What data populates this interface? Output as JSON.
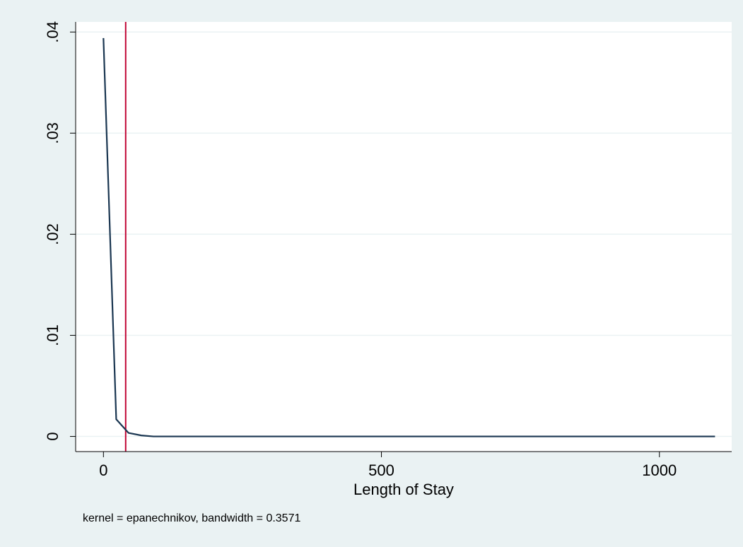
{
  "chart_data": {
    "type": "line",
    "title": "",
    "xlabel": "Length of Stay",
    "ylabel": "",
    "note": "kernel = epanechnikov, bandwidth = 0.3571",
    "xlim": [
      -50,
      1130
    ],
    "ylim": [
      -0.0015,
      0.041
    ],
    "x_ticks": [
      0,
      500,
      1000
    ],
    "x_tick_labels": [
      "0",
      "500",
      "1000"
    ],
    "y_ticks": [
      0,
      0.01,
      0.02,
      0.03,
      0.04
    ],
    "y_tick_labels": [
      "0",
      ".01",
      ".02",
      ".03",
      ".04"
    ],
    "grid": "horizontal",
    "legend": "none",
    "series": [
      {
        "color": "#1a3651",
        "x": [
          0,
          23,
          45,
          68,
          90,
          120,
          200,
          400,
          600,
          800,
          1000,
          1100
        ],
        "y": [
          0.0394,
          0.0017,
          0.00035,
          0.0001,
          0.0,
          0.0,
          0.0,
          0.0,
          0.0,
          0.0,
          0.0,
          0.0
        ]
      }
    ],
    "reference_line": {
      "axis": "x",
      "value": 40,
      "color": "#c10534"
    }
  },
  "colors": {
    "background": "#eaf2f3",
    "plot_background": "#ffffff",
    "grid": "#eaf2f3",
    "axis": "#000000"
  }
}
